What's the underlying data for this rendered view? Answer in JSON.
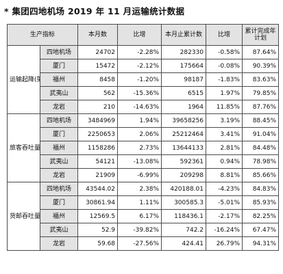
{
  "title": "* 集团四地机场 2019 年 11 月运输统计数据",
  "headers": [
    "生产指标",
    "本月数",
    "比增",
    "本月止累计数",
    "比增",
    "累计完成年计划"
  ],
  "groups": [
    {
      "label": "运输起降(架次)",
      "rows": [
        {
          "airport": "四地机场",
          "month": "24702",
          "mom": "-2.28%",
          "cumulative": "282330",
          "cum_growth": "-0.58%",
          "plan": "87.64%"
        },
        {
          "airport": "厦门",
          "month": "15472",
          "mom": "-2.12%",
          "cumulative": "175664",
          "cum_growth": "-0.08%",
          "plan": "90.39%"
        },
        {
          "airport": "福州",
          "month": "8458",
          "mom": "-1.20%",
          "cumulative": "98187",
          "cum_growth": "-1.83%",
          "plan": "83.63%"
        },
        {
          "airport": "武夷山",
          "month": "562",
          "mom": "-15.36%",
          "cumulative": "6515",
          "cum_growth": "1.97%",
          "plan": "79.85%"
        },
        {
          "airport": "龙岩",
          "month": "210",
          "mom": "-14.63%",
          "cumulative": "1964",
          "cum_growth": "11.85%",
          "plan": "87.76%"
        }
      ]
    },
    {
      "label": "旅客吞吐量(人次)",
      "rows": [
        {
          "airport": "四地机场",
          "month": "3484969",
          "mom": "1.94%",
          "cumulative": "39658256",
          "cum_growth": "3.19%",
          "plan": "88.45%"
        },
        {
          "airport": "厦门",
          "month": "2250653",
          "mom": "2.06%",
          "cumulative": "25212464",
          "cum_growth": "3.41%",
          "plan": "91.04%"
        },
        {
          "airport": "福州",
          "month": "1158286",
          "mom": "2.73%",
          "cumulative": "13644133",
          "cum_growth": "2.81%",
          "plan": "84.48%"
        },
        {
          "airport": "武夷山",
          "month": "54121",
          "mom": "-13.08%",
          "cumulative": "592361",
          "cum_growth": "0.94%",
          "plan": "78.98%"
        },
        {
          "airport": "龙岩",
          "month": "21909",
          "mom": "-6.99%",
          "cumulative": "209298",
          "cum_growth": "8.81%",
          "plan": "85.66%"
        }
      ]
    },
    {
      "label": "货邮吞吐量(吨)",
      "rows": [
        {
          "airport": "四地机场",
          "month": "43544.02",
          "mom": "2.38%",
          "cumulative": "420188.01",
          "cum_growth": "-4.23%",
          "plan": "84.83%"
        },
        {
          "airport": "厦门",
          "month": "30861.94",
          "mom": "1.11%",
          "cumulative": "300585.3",
          "cum_growth": "-5.01%",
          "plan": "85.93%"
        },
        {
          "airport": "福州",
          "month": "12569.5",
          "mom": "6.17%",
          "cumulative": "118436.1",
          "cum_growth": "-2.17%",
          "plan": "82.25%"
        },
        {
          "airport": "武夷山",
          "month": "52.9",
          "mom": "-39.82%",
          "cumulative": "742.2",
          "cum_growth": "-16.24%",
          "plan": "67.47%"
        },
        {
          "airport": "龙岩",
          "month": "59.68",
          "mom": "-27.56%",
          "cumulative": "424.41",
          "cum_growth": "26.79%",
          "plan": "94.31%"
        }
      ]
    }
  ]
}
